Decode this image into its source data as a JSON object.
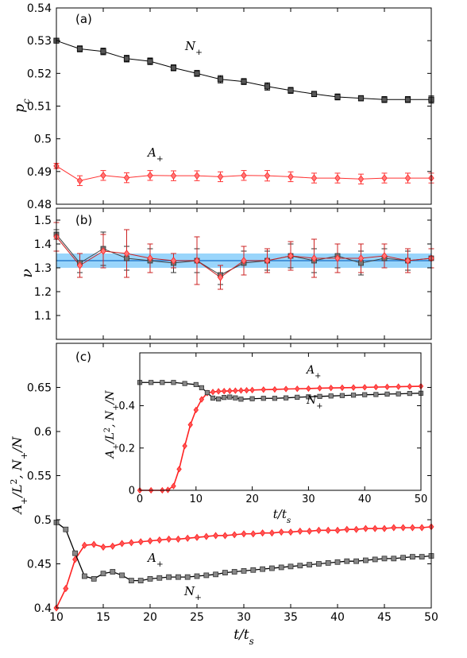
{
  "chart_data": [
    {
      "type": "scatter",
      "panel_label": "(a)",
      "ylabel": "p_c",
      "ylim": [
        0.48,
        0.54
      ],
      "yticks": [
        "0.48",
        "0.49",
        "0.5",
        "0.51",
        "0.52",
        "0.53",
        "0.54"
      ],
      "xlim": [
        10,
        50
      ],
      "series": [
        {
          "name": "N_+",
          "color": "#000000",
          "fill": "#555555",
          "marker": "square",
          "x": [
            10,
            12.5,
            15,
            17.5,
            20,
            22.5,
            25,
            27.5,
            30,
            32.5,
            35,
            37.5,
            40,
            42.5,
            45,
            47.5,
            50
          ],
          "y": [
            0.53,
            0.5275,
            0.5267,
            0.5245,
            0.5237,
            0.5217,
            0.52,
            0.5182,
            0.5175,
            0.516,
            0.5148,
            0.5137,
            0.5128,
            0.5124,
            0.512,
            0.512,
            0.512
          ],
          "err": [
            0.0005,
            0.0009,
            0.001,
            0.001,
            0.001,
            0.0009,
            0.0009,
            0.0011,
            0.0009,
            0.0011,
            0.0009,
            0.0008,
            0.0009,
            0.0008,
            0.0009,
            0.0009,
            0.0011
          ]
        },
        {
          "name": "A_+",
          "color": "#ff3333",
          "fill": "#ff7777",
          "marker": "diamond",
          "x": [
            10,
            12.5,
            15,
            17.5,
            20,
            22.5,
            25,
            27.5,
            30,
            32.5,
            35,
            37.5,
            40,
            42.5,
            45,
            47.5,
            50
          ],
          "y": [
            0.4917,
            0.4872,
            0.4888,
            0.4881,
            0.4888,
            0.4887,
            0.4887,
            0.4884,
            0.4888,
            0.4887,
            0.4884,
            0.488,
            0.488,
            0.4877,
            0.488,
            0.488,
            0.488
          ],
          "err": [
            0.0008,
            0.0015,
            0.0015,
            0.0015,
            0.0015,
            0.0015,
            0.0015,
            0.0015,
            0.0015,
            0.0016,
            0.0015,
            0.0015,
            0.0015,
            0.0015,
            0.0015,
            0.0015,
            0.0015
          ]
        }
      ],
      "series_labels": [
        "N_+",
        "A_+"
      ]
    },
    {
      "type": "scatter",
      "panel_label": "(b)",
      "ylabel": "ν",
      "ylim": [
        1.0,
        1.55
      ],
      "yticks": [
        "1.1",
        "1.2",
        "1.3",
        "1.4",
        "1.5"
      ],
      "xlim": [
        10,
        50
      ],
      "band": {
        "center": 1.33,
        "low": 1.3,
        "high": 1.36,
        "color": "#87cefa",
        "line_color": "#2a7fd0"
      },
      "series": [
        {
          "color": "#cc2222",
          "fill": "#ff7777",
          "marker": "diamond",
          "x": [
            10,
            12.5,
            15,
            17.5,
            20,
            22.5,
            25,
            27.5,
            30,
            32.5,
            35,
            37.5,
            40,
            42.5,
            45,
            47.5,
            50
          ],
          "y": [
            1.43,
            1.31,
            1.37,
            1.36,
            1.34,
            1.33,
            1.33,
            1.26,
            1.33,
            1.33,
            1.35,
            1.34,
            1.34,
            1.34,
            1.35,
            1.33,
            1.34
          ],
          "err": [
            0.06,
            0.05,
            0.07,
            0.1,
            0.06,
            0.03,
            0.1,
            0.05,
            0.06,
            0.05,
            0.06,
            0.08,
            0.06,
            0.06,
            0.05,
            0.05,
            0.04
          ]
        },
        {
          "color": "#555555",
          "fill": "#777777",
          "marker": "square",
          "x": [
            10,
            12.5,
            15,
            17.5,
            20,
            22.5,
            25,
            27.5,
            30,
            32.5,
            35,
            37.5,
            40,
            42.5,
            45,
            47.5,
            50
          ],
          "y": [
            1.44,
            1.32,
            1.38,
            1.34,
            1.33,
            1.32,
            1.33,
            1.27,
            1.32,
            1.33,
            1.35,
            1.33,
            1.35,
            1.32,
            1.34,
            1.33,
            1.34
          ],
          "err": [
            0.02,
            0.04,
            0.07,
            0.05,
            0.05,
            0.04,
            0.05,
            0.04,
            0.05,
            0.04,
            0.05,
            0.05,
            0.05,
            0.05,
            0.04,
            0.04,
            0.04
          ]
        }
      ]
    },
    {
      "type": "line",
      "panel_label": "(c)",
      "xlabel": "t/t_s",
      "ylabel": "A_+/L^2,  N_+/N",
      "xlim": [
        10,
        50
      ],
      "ylim": [
        0.4,
        0.7
      ],
      "xticks": [
        "10",
        "15",
        "20",
        "25",
        "30",
        "35",
        "40",
        "45",
        "50"
      ],
      "yticks": [
        "0.4",
        "0.45",
        "0.5",
        "0.55",
        "0.6",
        "0.65"
      ],
      "series": [
        {
          "name": "A_+",
          "color": "#ff2222",
          "marker": "diamond",
          "x": [
            10,
            11,
            12,
            13,
            14,
            15,
            16,
            17,
            18,
            19,
            20,
            21,
            22,
            23,
            24,
            25,
            26,
            27,
            28,
            29,
            30,
            31,
            32,
            33,
            34,
            35,
            36,
            37,
            38,
            39,
            40,
            41,
            42,
            43,
            44,
            45,
            46,
            47,
            48,
            49,
            50
          ],
          "y": [
            0.4,
            0.422,
            0.455,
            0.471,
            0.472,
            0.469,
            0.47,
            0.473,
            0.474,
            0.475,
            0.476,
            0.477,
            0.478,
            0.478,
            0.479,
            0.48,
            0.481,
            0.482,
            0.482,
            0.483,
            0.484,
            0.484,
            0.485,
            0.485,
            0.486,
            0.486,
            0.487,
            0.487,
            0.488,
            0.488,
            0.488,
            0.489,
            0.489,
            0.49,
            0.49,
            0.49,
            0.491,
            0.491,
            0.491,
            0.491,
            0.492
          ]
        },
        {
          "name": "N_+",
          "color": "#000000",
          "fill": "#888888",
          "marker": "square",
          "x": [
            10,
            11,
            12,
            13,
            14,
            15,
            16,
            17,
            18,
            19,
            20,
            21,
            22,
            23,
            24,
            25,
            26,
            27,
            28,
            29,
            30,
            31,
            32,
            33,
            34,
            35,
            36,
            37,
            38,
            39,
            40,
            41,
            42,
            43,
            44,
            45,
            46,
            47,
            48,
            49,
            50
          ],
          "y": [
            0.497,
            0.489,
            0.462,
            0.436,
            0.433,
            0.439,
            0.441,
            0.437,
            0.431,
            0.431,
            0.433,
            0.434,
            0.435,
            0.435,
            0.435,
            0.436,
            0.437,
            0.438,
            0.44,
            0.441,
            0.442,
            0.443,
            0.444,
            0.445,
            0.446,
            0.447,
            0.448,
            0.449,
            0.45,
            0.451,
            0.452,
            0.453,
            0.453,
            0.454,
            0.455,
            0.456,
            0.456,
            0.457,
            0.458,
            0.458,
            0.459
          ]
        }
      ],
      "series_labels": [
        "A_+",
        "N_+"
      ],
      "inset": {
        "xlabel": "t/t_s",
        "ylabel": "A_+/L^2,  N_+/N",
        "xlim": [
          0,
          50
        ],
        "ylim": [
          0,
          0.65
        ],
        "xticks": [
          "0",
          "10",
          "20",
          "30",
          "40",
          "50"
        ],
        "yticks": [
          "0",
          "0.2",
          "0.4"
        ],
        "series": [
          {
            "name": "A_+",
            "color": "#ff2222",
            "marker": "diamond",
            "x": [
              0,
              2,
              4,
              5,
              6,
              7,
              8,
              9,
              10,
              11,
              12,
              13,
              14,
              15,
              16,
              17,
              18,
              19,
              20,
              22,
              24,
              26,
              28,
              30,
              32,
              34,
              36,
              38,
              40,
              42,
              44,
              46,
              48,
              50
            ],
            "y": [
              0,
              0,
              0,
              0.002,
              0.02,
              0.1,
              0.21,
              0.31,
              0.38,
              0.43,
              0.46,
              0.465,
              0.468,
              0.469,
              0.47,
              0.471,
              0.472,
              0.473,
              0.474,
              0.476,
              0.477,
              0.479,
              0.48,
              0.481,
              0.483,
              0.484,
              0.485,
              0.486,
              0.487,
              0.488,
              0.489,
              0.49,
              0.491,
              0.492
            ]
          },
          {
            "name": "N_+",
            "color": "#000000",
            "fill": "#888888",
            "marker": "square",
            "x": [
              0,
              2,
              4,
              6,
              8,
              10,
              11,
              12,
              13,
              14,
              15,
              16,
              17,
              18,
              20,
              22,
              24,
              26,
              28,
              30,
              32,
              34,
              36,
              38,
              40,
              42,
              44,
              46,
              48,
              50
            ],
            "y": [
              0.51,
              0.51,
              0.51,
              0.51,
              0.505,
              0.5,
              0.485,
              0.462,
              0.436,
              0.432,
              0.439,
              0.441,
              0.437,
              0.431,
              0.433,
              0.435,
              0.435,
              0.437,
              0.44,
              0.442,
              0.444,
              0.446,
              0.448,
              0.45,
              0.452,
              0.453,
              0.455,
              0.456,
              0.458,
              0.459
            ]
          }
        ],
        "series_labels": [
          "A_+",
          "N_+"
        ]
      }
    }
  ]
}
